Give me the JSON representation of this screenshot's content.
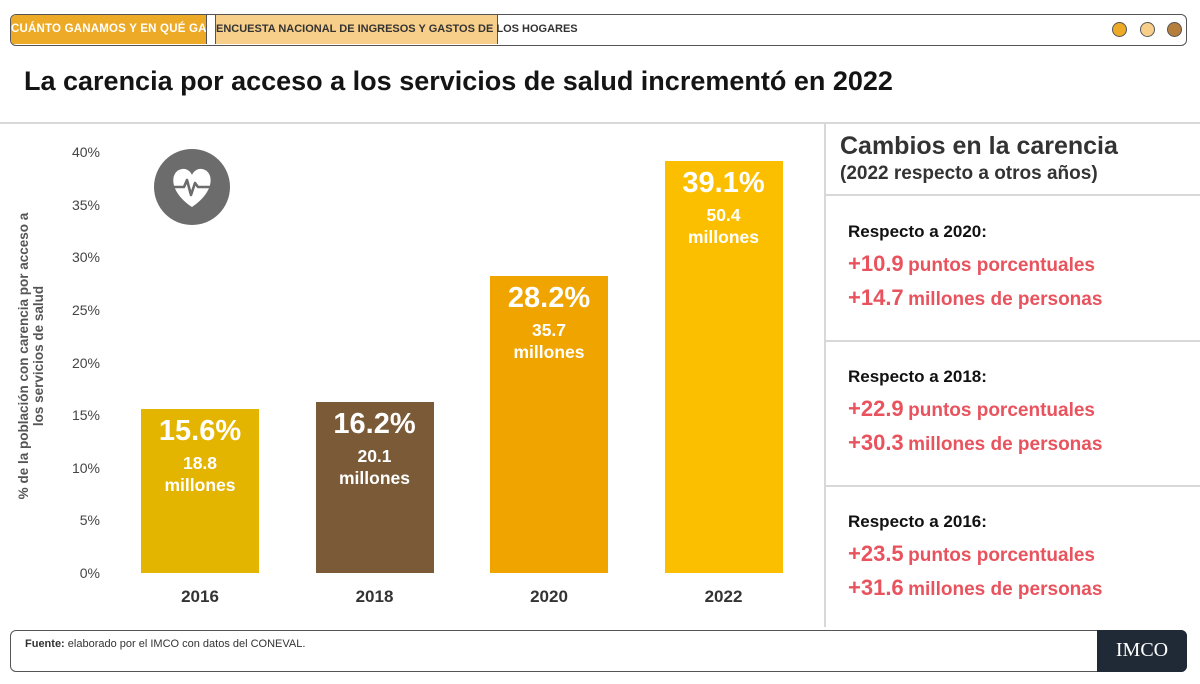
{
  "header": {
    "tab_primary": "CUÁNTO GANAMOS Y EN QUÉ GASTAMOS",
    "tab_secondary": "ENCUESTA NACIONAL DE INGRESOS Y GASTOS DE LOS HOGARES",
    "window_dots": [
      "#ecaa26",
      "#f7cf8a",
      "#b57e3c"
    ]
  },
  "title": "La carencia por acceso a los servicios de salud incrementó en 2022",
  "chart_data": {
    "type": "bar",
    "title": "",
    "ylabel": "% de la población con carencia por acceso a los servicios de salud",
    "xlabel": "",
    "ylim": [
      0,
      40
    ],
    "yticks": [
      "0%",
      "5%",
      "10%",
      "15%",
      "20%",
      "25%",
      "30%",
      "35%",
      "40%"
    ],
    "categories": [
      "2016",
      "2018",
      "2020",
      "2022"
    ],
    "values": [
      15.6,
      16.2,
      28.2,
      39.1
    ],
    "pct_labels": [
      "15.6%",
      "16.2%",
      "28.2%",
      "39.1%"
    ],
    "million_values": [
      "18.8",
      "20.1",
      "35.7",
      "50.4"
    ],
    "million_unit": "millones",
    "colors": [
      "#e3b400",
      "#7b5a38",
      "#f0a400",
      "#fcbf00"
    ],
    "icon": "heart-pulse-icon"
  },
  "side_panel": {
    "title": "Cambios en la carencia",
    "subtitle": "(2022 respecto a otros años)",
    "comparisons": [
      {
        "label": "Respecto a 2020:",
        "pp_value": "+10.9",
        "pp_unit": "puntos porcentuales",
        "people_value": "+14.7",
        "people_unit": "millones de personas"
      },
      {
        "label": "Respecto a 2018:",
        "pp_value": "+22.9",
        "pp_unit": "puntos porcentuales",
        "people_value": "+30.3",
        "people_unit": "millones de personas"
      },
      {
        "label": "Respecto a 2016:",
        "pp_value": "+23.5",
        "pp_unit": "puntos porcentuales",
        "people_value": "+31.6",
        "people_unit": "millones de personas"
      }
    ],
    "accent_color": "#e8535e"
  },
  "footer": {
    "source_label": "Fuente:",
    "source_text": " elaborado por el IMCO con datos del CONEVAL.",
    "logo_text": "IMCO"
  }
}
